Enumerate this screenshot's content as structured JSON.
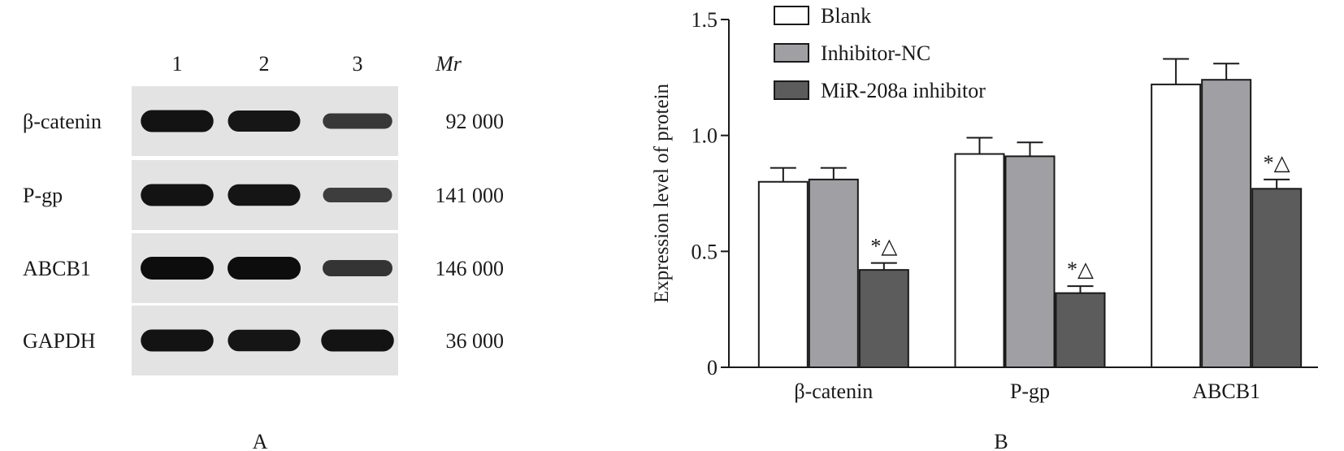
{
  "panel_a": {
    "label": "A",
    "lane_labels": [
      "1",
      "2",
      "3"
    ],
    "mr_header": "Mr",
    "rows": [
      {
        "protein": "β-catenin",
        "mr": "92 000",
        "intensities": [
          0.95,
          0.9,
          0.55
        ]
      },
      {
        "protein": "P-gp",
        "mr": "141 000",
        "intensities": [
          0.95,
          0.92,
          0.5
        ]
      },
      {
        "protein": "ABCB1",
        "mr": "146 000",
        "intensities": [
          1.0,
          1.0,
          0.6
        ]
      },
      {
        "protein": "GAPDH",
        "mr": "36 000",
        "intensities": [
          0.95,
          0.92,
          0.95
        ]
      }
    ]
  },
  "chart_data": {
    "type": "bar",
    "panel_label": "B",
    "title": "",
    "xlabel": "",
    "ylabel": "Expression level of protein",
    "ylim": [
      0,
      1.5
    ],
    "yticks": [
      "0",
      "0.5",
      "1.0",
      "1.5"
    ],
    "ytick_values": [
      0,
      0.5,
      1.0,
      1.5
    ],
    "categories": [
      "β-catenin",
      "P-gp",
      "ABCB1"
    ],
    "series": [
      {
        "name": "Blank",
        "color": "#ffffff",
        "values": [
          0.8,
          0.92,
          1.22
        ],
        "errors": [
          0.06,
          0.07,
          0.11
        ]
      },
      {
        "name": "Inhibitor-NC",
        "color": "#a0a0a4",
        "values": [
          0.81,
          0.91,
          1.24
        ],
        "errors": [
          0.05,
          0.06,
          0.07
        ]
      },
      {
        "name": "MiR-208a inhibitor",
        "color": "#5c5c5c",
        "values": [
          0.42,
          0.32,
          0.77
        ],
        "errors": [
          0.03,
          0.03,
          0.04
        ]
      }
    ],
    "annotations": [
      {
        "series": 2,
        "category": 0,
        "text": "*△"
      },
      {
        "series": 2,
        "category": 1,
        "text": "*△"
      },
      {
        "series": 2,
        "category": 2,
        "text": "*△"
      }
    ],
    "legend_position": "top-left",
    "grid": false
  }
}
